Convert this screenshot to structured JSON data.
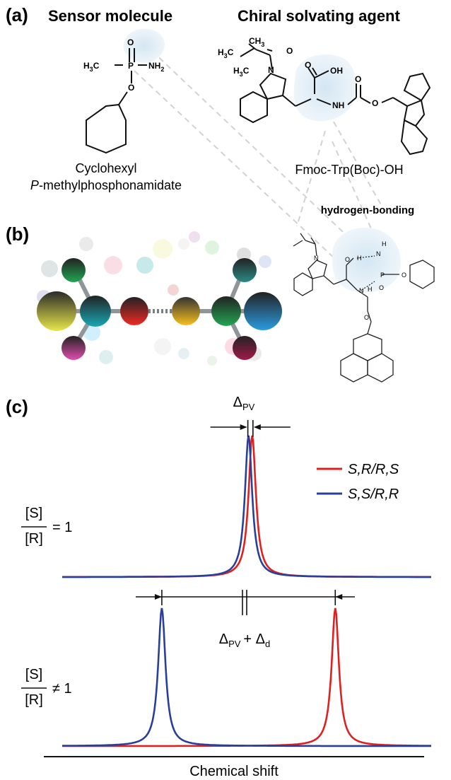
{
  "panels": {
    "a": "(a)",
    "b": "(b)",
    "c": "(c)"
  },
  "headers": {
    "sensor": "Sensor molecule",
    "csa": "Chiral solvating agent"
  },
  "sensor_name_line1": "Cyclohexyl",
  "sensor_name_line2": "P-methylphosphonamidate",
  "csa_name": "Fmoc-Trp(Boc)-OH",
  "hbond_label": "hydrogen-bonding",
  "atoms": {
    "O": "O",
    "P": "P",
    "NH2": "NH",
    "NH2_sub": "2",
    "H3C": "H",
    "H3C_sub": "3",
    "C": "C",
    "OH": "OH",
    "NH": "NH",
    "N": "N",
    "H3C2": "H",
    "H3C2_sub": "3",
    "CH3": "CH",
    "CH3_sub": "3"
  },
  "small_atoms": {
    "O": "O",
    "H": "H",
    "N": "N",
    "P": "P"
  },
  "colors": {
    "red": "#e02020",
    "blue": "#2a3f9a",
    "dash": "#c8ccd0",
    "glow": "#dcebf5"
  },
  "chart_data": {
    "type": "line",
    "xlabel": "Chemical shift",
    "legend": [
      {
        "name": "S,R/R,S",
        "color": "#e02020"
      },
      {
        "name": "S,S/R,R",
        "color": "#2a3f9a"
      }
    ],
    "top": {
      "ratio_num": "[S]",
      "ratio_den": "[R]",
      "relation": "= 1",
      "annotation": "Δ",
      "annotation_sub": "PV",
      "series": [
        {
          "name": "S,R/R,S",
          "center": 0.515,
          "height": 1.0,
          "width": 0.012
        },
        {
          "name": "S,S/R,R",
          "center": 0.505,
          "height": 1.0,
          "width": 0.012
        }
      ]
    },
    "bottom": {
      "ratio_num": "[S]",
      "ratio_den": "[R]",
      "relation": "≠ 1",
      "annotation": "Δ",
      "annotation_sub": "PV",
      "annotation_plus": "+ Δ",
      "annotation_sub2": "d",
      "series": [
        {
          "name": "S,S/R,R",
          "center": 0.27,
          "height": 1.0,
          "width": 0.012
        },
        {
          "name": "S,R/R,S",
          "center": 0.74,
          "height": 1.0,
          "width": 0.012
        }
      ]
    }
  }
}
